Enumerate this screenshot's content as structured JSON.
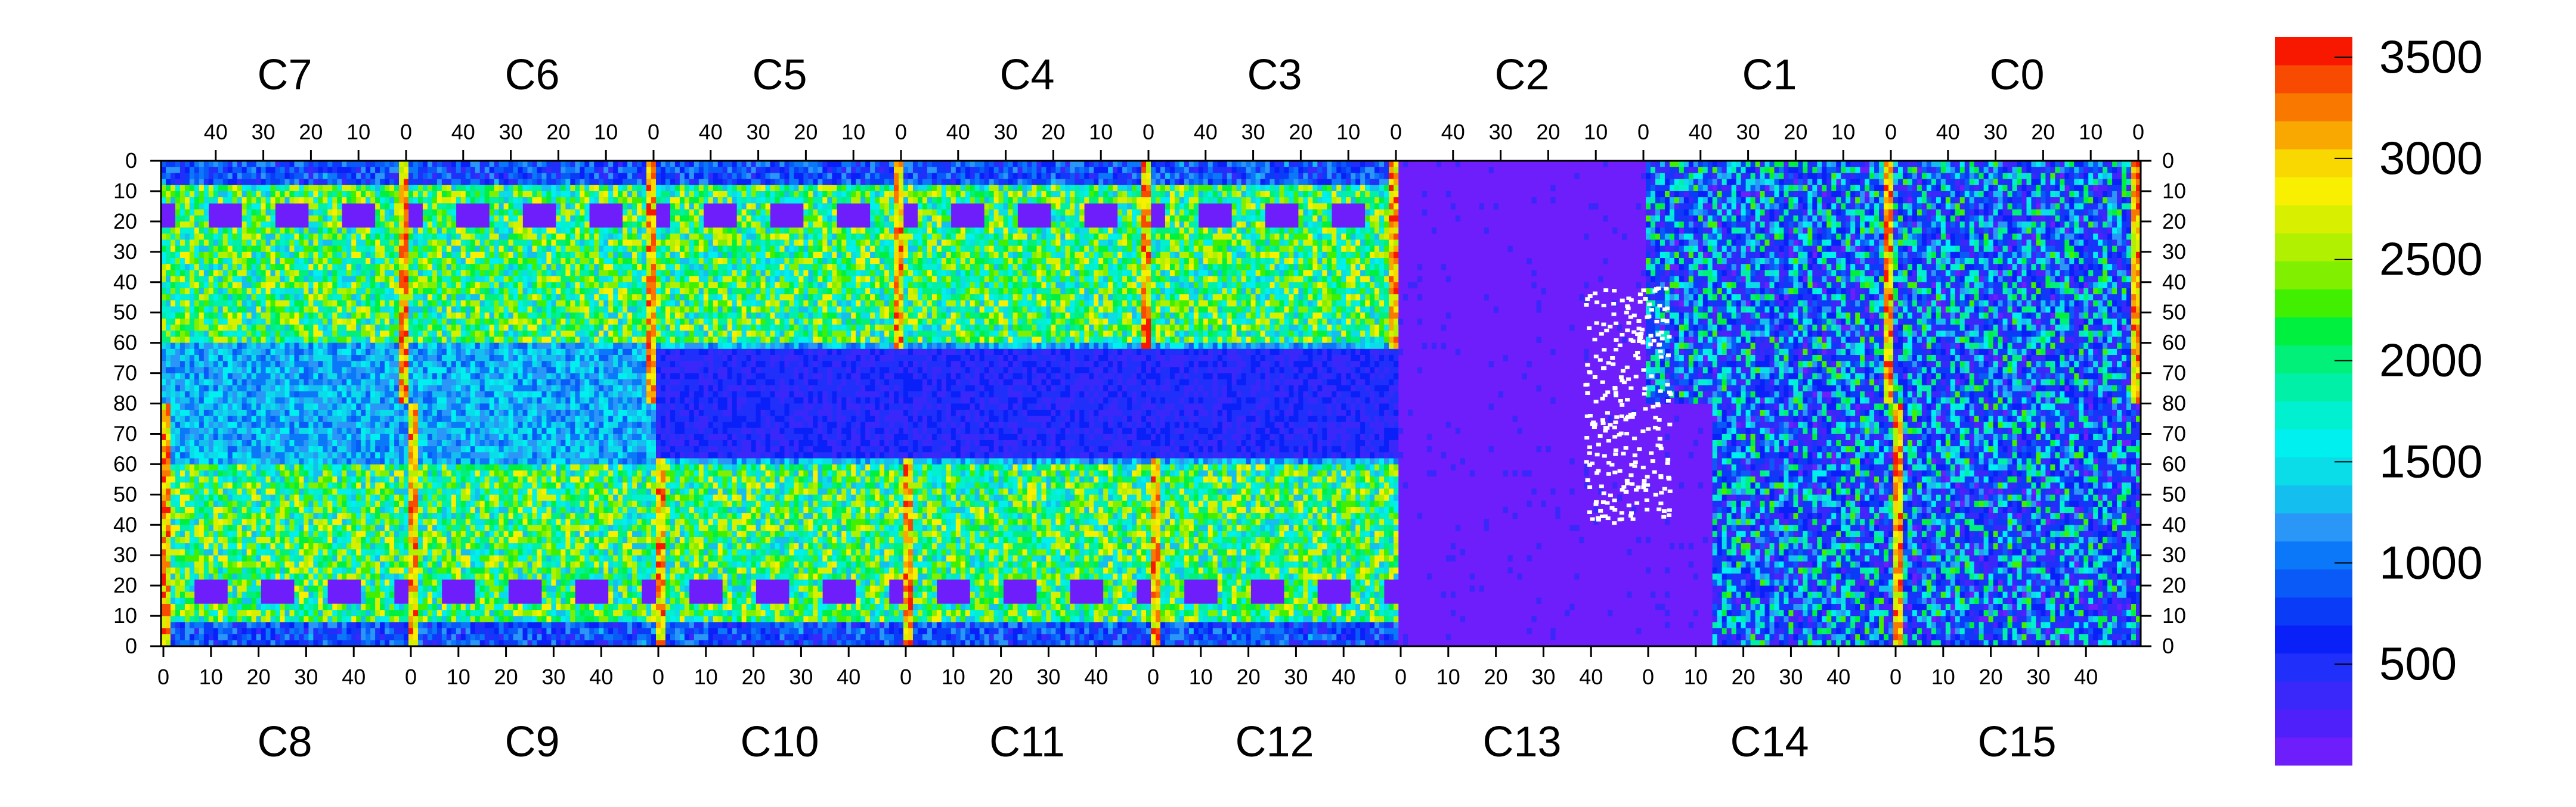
{
  "chart_data": {
    "type": "heatmap",
    "title": "",
    "xlabel": "",
    "ylabel": "",
    "top_chips": [
      "C7",
      "C6",
      "C5",
      "C4",
      "C3",
      "C2",
      "C1",
      "C0"
    ],
    "bottom_chips": [
      "C8",
      "C9",
      "C10",
      "C11",
      "C12",
      "C13",
      "C14",
      "C15"
    ],
    "chip_columns": 52,
    "chip_rows": 80,
    "top_x_ticks": [
      "40",
      "30",
      "20",
      "10",
      "0"
    ],
    "bottom_x_ticks": [
      "0",
      "10",
      "20",
      "30",
      "40"
    ],
    "y_ticks_top_half": [
      "0",
      "10",
      "20",
      "30",
      "40",
      "50",
      "60",
      "70",
      "80"
    ],
    "y_ticks_bottom_half": [
      "70",
      "60",
      "50",
      "40",
      "30",
      "20",
      "10",
      "0"
    ],
    "colorbar": {
      "min": 0,
      "max": 3600,
      "tick_labels": [
        "500",
        "1000",
        "1500",
        "2000",
        "2500",
        "3000",
        "3500"
      ],
      "tick_values": [
        500,
        1000,
        1500,
        2000,
        2500,
        3000,
        3500
      ],
      "colors": [
        "#6e1efa",
        "#5020fa",
        "#3a28fa",
        "#2030fa",
        "#0a20f8",
        "#0a3cf8",
        "#0a5af8",
        "#0a78f8",
        "#2a96f8",
        "#14bff0",
        "#0adce8",
        "#00f0f0",
        "#00f0d0",
        "#00f0a8",
        "#00f07a",
        "#00f040",
        "#40f000",
        "#80f000",
        "#b0f000",
        "#d8f000",
        "#f8f000",
        "#f8d800",
        "#f8a800",
        "#f87800",
        "#f84a00",
        "#f81800"
      ]
    },
    "legend_position": "right",
    "grid": false
  }
}
